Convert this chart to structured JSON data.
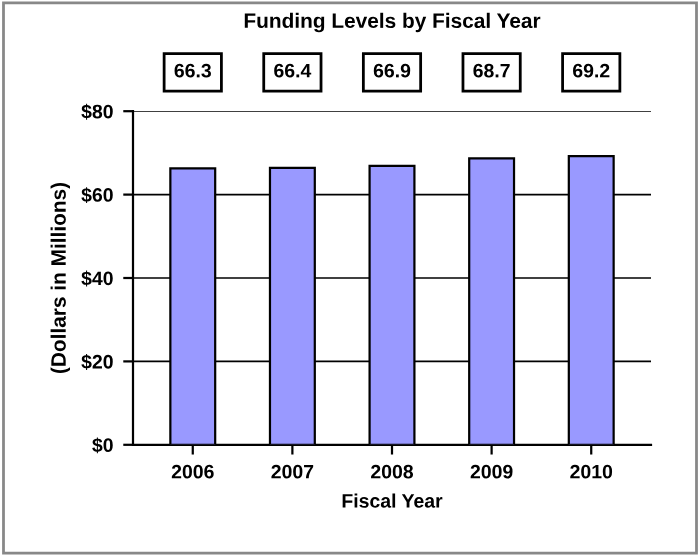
{
  "chart_data": {
    "type": "bar",
    "title": "Funding Levels by Fiscal Year",
    "xlabel": "Fiscal Year",
    "ylabel": "(Dollars in Millions)",
    "categories": [
      "2006",
      "2007",
      "2008",
      "2009",
      "2010"
    ],
    "values": [
      66.3,
      66.4,
      66.9,
      68.7,
      69.2
    ],
    "color": "#9999ff",
    "ylim": [
      0,
      80
    ],
    "yticks": [
      {
        "value": 0,
        "label": "$0"
      },
      {
        "value": 20,
        "label": "$20"
      },
      {
        "value": 40,
        "label": "$40"
      },
      {
        "value": 60,
        "label": "$60"
      },
      {
        "value": 80,
        "label": "$80"
      }
    ],
    "grid": "y",
    "data_labels": true
  }
}
